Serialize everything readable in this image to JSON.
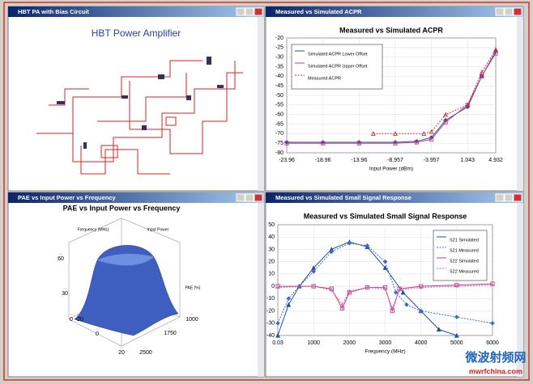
{
  "windows": [
    {
      "title": "HBT PA with Bias Circuit"
    },
    {
      "title": "Measured vs Simulated ACPR"
    },
    {
      "title": "PAE vs Input Power vs Frequency"
    },
    {
      "title": "Measured vs Simulated Small Signal Response"
    }
  ],
  "schematic": {
    "title": "HBT Power Amplifier"
  },
  "chart_data": [
    {
      "type": "line",
      "title": "Measured vs Simulated ACPR",
      "xlabel": "Input Power (dBm)",
      "xlim": [
        -23.96,
        4.932
      ],
      "xticks": [
        -23.96,
        -18.96,
        -13.96,
        -8.957,
        -3.957,
        1.043,
        4.932
      ],
      "ylim": [
        -80,
        -20
      ],
      "yticks": [
        -20,
        -25,
        -30,
        -35,
        -40,
        -45,
        -50,
        -55,
        -60,
        -65,
        -70,
        -75,
        -80
      ],
      "grid": true,
      "series": [
        {
          "name": "Simulated ACPR Lower Offset",
          "color": "#1f4fa8",
          "marker": "diamond",
          "dash": false,
          "x": [
            -23.96,
            -18.96,
            -13.96,
            -8.957,
            -6,
            -3.957,
            -2,
            1.043,
            3,
            4.932
          ],
          "values": [
            -74.5,
            -74.5,
            -74.5,
            -74.5,
            -74,
            -72,
            -63,
            -56,
            -40,
            -27
          ]
        },
        {
          "name": "Simulated ACPR Upper Offset",
          "color": "#c0408a",
          "marker": "square",
          "dash": false,
          "x": [
            -23.96,
            -18.96,
            -13.96,
            -8.957,
            -6,
            -3.957,
            -2,
            1.043,
            3,
            4.932
          ],
          "values": [
            -75,
            -75,
            -75,
            -75,
            -74.5,
            -73,
            -64,
            -55,
            -40,
            -28
          ]
        },
        {
          "name": "Measured ACPR",
          "color": "#e03030",
          "marker": "triangle",
          "dash": true,
          "x": [
            -12,
            -8.957,
            -5,
            -3.957,
            -2,
            1.043,
            3,
            4.932
          ],
          "values": [
            -70,
            -70,
            -70,
            -69,
            -60,
            -55,
            -38,
            -26
          ]
        }
      ]
    },
    {
      "type": "line",
      "title": "Measured vs Simulated Small Signal Response",
      "xlabel": "Frequency (MHz)",
      "xlim": [
        0.03,
        6000
      ],
      "xticks": [
        0.03,
        1000,
        2000,
        3000,
        4000,
        5000,
        6000
      ],
      "ylim": [
        -40,
        50
      ],
      "yticks": [
        50,
        40,
        30,
        20,
        10,
        0,
        -10,
        -20,
        -30,
        -40
      ],
      "grid": true,
      "series": [
        {
          "name": "S21 Simulated",
          "color": "#1f4fa8",
          "marker": "triangle",
          "dash": false,
          "x": [
            0.03,
            300,
            600,
            1000,
            1500,
            2000,
            2500,
            3000,
            3500,
            4000,
            4500,
            5000
          ],
          "values": [
            -40,
            -15,
            0,
            15,
            30,
            36,
            32,
            15,
            -5,
            -20,
            -35,
            -40
          ]
        },
        {
          "name": "S21 Measured",
          "color": "#3a6fc8",
          "marker": "diamond",
          "dash": true,
          "x": [
            0.03,
            300,
            600,
            1000,
            1500,
            2000,
            2500,
            3000,
            3300,
            3600,
            4000,
            5000,
            6000
          ],
          "values": [
            -30,
            -10,
            0,
            12,
            28,
            35,
            33,
            20,
            -5,
            -15,
            -20,
            -25,
            -30
          ]
        },
        {
          "name": "S22 Simulated",
          "color": "#c0408a",
          "marker": "square",
          "dash": false,
          "x": [
            0.03,
            1000,
            1500,
            1800,
            2000,
            2500,
            3000,
            3200,
            3400,
            4000,
            5000,
            6000
          ],
          "values": [
            0,
            0,
            -2,
            -18,
            -5,
            -1,
            -1,
            -20,
            -2,
            0,
            1,
            2
          ]
        },
        {
          "name": "S22 Measured",
          "color": "#d060b0",
          "marker": "cross",
          "dash": true,
          "x": [
            0.03,
            1000,
            1500,
            1800,
            2000,
            2500,
            3000,
            3200,
            3400,
            4000,
            5000,
            6000
          ],
          "values": [
            -1,
            0,
            -3,
            -15,
            -4,
            -1,
            -2,
            -18,
            -3,
            -1,
            0,
            1
          ]
        }
      ]
    },
    {
      "type": "surface",
      "title": "PAE vs Input Power vs Frequency",
      "xlabel": "Input Power",
      "ylabel": "Frequency (MHz)",
      "zlabel": "PAE (%)",
      "xticks": [
        -20,
        0,
        20
      ],
      "yticks": [
        1000,
        1750,
        2500
      ],
      "zticks": [
        0,
        30,
        60
      ]
    }
  ],
  "watermark": {
    "name": "微波射频网",
    "url": "mwrfchina.com"
  }
}
